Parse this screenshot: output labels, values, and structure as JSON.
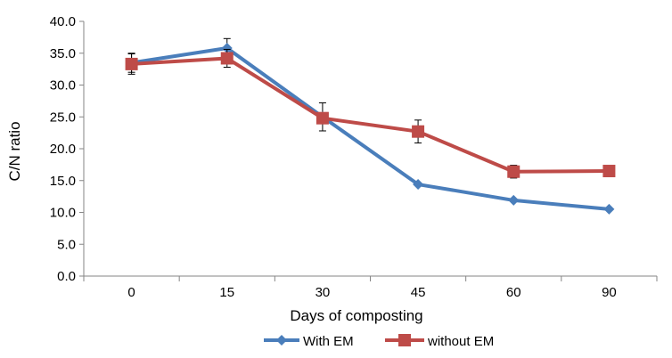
{
  "chart_data": {
    "type": "line",
    "xlabel": "Days of composting",
    "ylabel": "C/N ratio",
    "ylim": [
      0,
      40
    ],
    "yticks": [
      "0.0",
      "5.0",
      "10.0",
      "15.0",
      "20.0",
      "25.0",
      "30.0",
      "35.0",
      "40.0"
    ],
    "categories": [
      "0",
      "15",
      "30",
      "45",
      "60",
      "90"
    ],
    "grid": false,
    "legend_position": "bottom",
    "series": [
      {
        "name": "With EM",
        "marker": "diamond",
        "color": "#4a7ebb",
        "values": [
          33.5,
          35.8,
          25.0,
          14.4,
          11.9,
          10.5
        ],
        "error": [
          1.5,
          1.5,
          2.2,
          0,
          0,
          0
        ]
      },
      {
        "name": "without EM",
        "marker": "square",
        "color": "#be4b48",
        "values": [
          33.3,
          34.2,
          24.8,
          22.7,
          16.4,
          16.5
        ],
        "error": [
          1.6,
          1.4,
          0,
          1.8,
          1.0,
          0
        ]
      }
    ]
  }
}
